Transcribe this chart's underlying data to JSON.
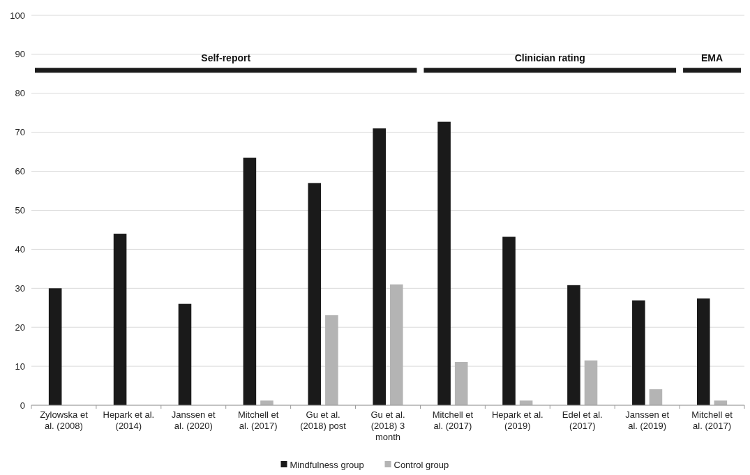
{
  "chart_data": {
    "type": "bar",
    "categories": [
      "Zylowska et al. (2008)",
      "Hepark et al. (2014)",
      "Janssen et al. (2020)",
      "Mitchell et al. (2017)",
      "Gu et al. (2018) post",
      "Gu et al. (2018) 3 month",
      "Mitchell et al. (2017)",
      "Hepark et al. (2019)",
      "Edel et al. (2017)",
      "Janssen et al. (2019)",
      "Mitchell et al. (2017)"
    ],
    "series": [
      {
        "name": "Mindfulness group",
        "color": "#1a1a1a",
        "values": [
          30,
          44,
          26,
          63.5,
          57,
          71,
          72.7,
          43.2,
          30.8,
          26.9,
          27.4
        ]
      },
      {
        "name": "Control group",
        "color": "#b4b4b4",
        "values": [
          0,
          0,
          0,
          1.2,
          23.1,
          31,
          11.1,
          1.2,
          11.5,
          4.1,
          1.2
        ]
      }
    ],
    "ylim": [
      0,
      100
    ],
    "yticks": [
      0,
      10,
      20,
      30,
      40,
      50,
      60,
      70,
      80,
      90,
      100
    ],
    "grid": "y",
    "legend": "bottom",
    "annotations": [
      "Self-report",
      "Clinician rating",
      "EMA"
    ]
  }
}
